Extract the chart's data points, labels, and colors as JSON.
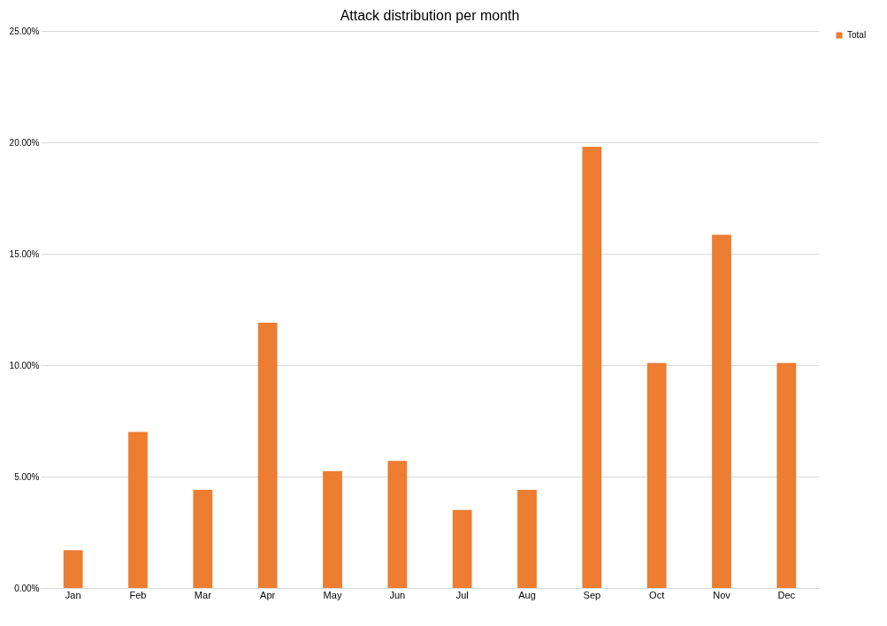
{
  "chart_data": {
    "type": "bar",
    "title": "Attack distribution per month",
    "categories": [
      "Jan",
      "Feb",
      "Mar",
      "Apr",
      "May",
      "Jun",
      "Jul",
      "Aug",
      "Sep",
      "Oct",
      "Nov",
      "Dec"
    ],
    "series": [
      {
        "name": "Total",
        "color": "#ed7d31",
        "values": [
          1.7,
          7.0,
          4.4,
          11.9,
          5.25,
          5.7,
          3.5,
          4.4,
          19.8,
          10.1,
          15.85,
          10.1
        ]
      }
    ],
    "ylim": [
      0,
      25
    ],
    "yticks": [
      {
        "value": 0,
        "label": "0.00%"
      },
      {
        "value": 5,
        "label": "5.00%"
      },
      {
        "value": 10,
        "label": "10.00%"
      },
      {
        "value": 15,
        "label": "15.00%"
      },
      {
        "value": 20,
        "label": "20.00%"
      },
      {
        "value": 25,
        "label": "25.00%"
      }
    ],
    "grid": "y",
    "legend": "right"
  }
}
